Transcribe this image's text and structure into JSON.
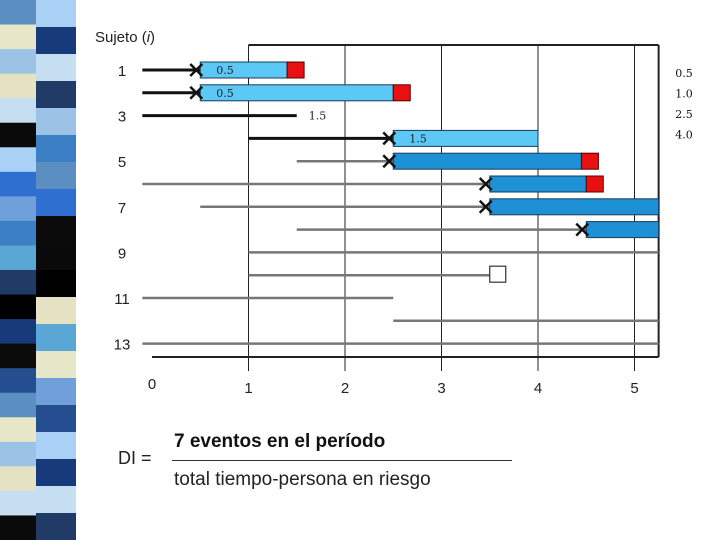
{
  "header": {
    "subject_label": "Sujeto (",
    "subject_var": "i",
    "subject_close": ")"
  },
  "stripe": {
    "colors": [
      "#5B8FC2",
      "#1F3B66",
      "#A9D1F5",
      "#E8E6C8",
      "#000000",
      "#2E6FD0",
      "#9CC3E6",
      "#173A7A",
      "#6FA0D9",
      "#E4E2C2",
      "#0B0B0B",
      "#3D7FC4",
      "#C6DEF2",
      "#244E8F",
      "#5AA7D6",
      "#0A0A0A"
    ],
    "row_counts": [
      22,
      20
    ]
  },
  "chart_data": {
    "type": "follow-up timeline",
    "x_axis": {
      "range": [
        0,
        5
      ],
      "ticks": [
        "0",
        "1",
        "2",
        "3",
        "4",
        "5"
      ],
      "gridlines": [
        1,
        2,
        3,
        4,
        5
      ]
    },
    "y_labels": [
      {
        "row": 1,
        "label": "1"
      },
      {
        "row": 3,
        "label": "3"
      },
      {
        "row": 5,
        "label": "5"
      },
      {
        "row": 7,
        "label": "7"
      },
      {
        "row": 9,
        "label": "9"
      },
      {
        "row": 11,
        "label": "11"
      },
      {
        "row": 13,
        "label": "13"
      }
    ],
    "subjects": [
      {
        "row": 1,
        "start": -0.1,
        "end": 0.5,
        "line": "#111111",
        "event": true
      },
      {
        "row": 2,
        "start": -0.1,
        "end": 0.5,
        "line": "#111111",
        "event": true
      },
      {
        "row": 3,
        "start": -0.1,
        "end": 1.5,
        "line": "#111111",
        "event": false
      },
      {
        "row": 4,
        "start": 1.0,
        "end": 2.5,
        "line": "#111111",
        "event": true
      },
      {
        "row": 5,
        "start": 1.5,
        "end": 2.5,
        "line": "#777777",
        "event": true
      },
      {
        "row": 6,
        "start": -0.1,
        "end": 3.5,
        "line": "#777777",
        "event": true
      },
      {
        "row": 7,
        "start": 0.5,
        "end": 3.5,
        "line": "#777777",
        "event": true
      },
      {
        "row": 8,
        "start": 1.5,
        "end": 4.5,
        "line": "#777777",
        "event": true
      },
      {
        "row": 9,
        "start": 1.0,
        "end": 5.25,
        "line": "#777777",
        "event": false
      },
      {
        "row": 10,
        "start": 1.0,
        "end": 3.5,
        "line": "#777777",
        "event": false,
        "censor": "open-box"
      },
      {
        "row": 11,
        "start": -0.1,
        "end": 2.5,
        "line": "#777777",
        "event": false
      },
      {
        "row": 12,
        "start": 2.5,
        "end": 5.25,
        "line": "#777777",
        "event": false
      },
      {
        "row": 13,
        "start": -0.1,
        "end": 5.25,
        "line": "#777777",
        "event": false
      }
    ],
    "risk_bars": [
      {
        "row": 1,
        "start": 0.5,
        "end": 1.4,
        "fill": "#5BC8F5",
        "red_box": true,
        "label": "0.5"
      },
      {
        "row": 2,
        "start": 0.5,
        "end": 2.5,
        "fill": "#5BC8F5",
        "red_box": true,
        "label": "0.5"
      },
      {
        "row": 4,
        "start": 2.5,
        "end": 4.0,
        "fill": "#5BC8F5",
        "red_box": false,
        "label": "1.5"
      },
      {
        "row": 5,
        "start": 2.5,
        "end": 4.45,
        "fill": "#1E90D6",
        "red_box": true,
        "label": ""
      },
      {
        "row": 6,
        "start": 3.5,
        "end": 4.5,
        "fill": "#1E90D6",
        "red_box": true,
        "label": ""
      },
      {
        "row": 7,
        "start": 3.5,
        "end": 5.25,
        "fill": "#1E90D6",
        "red_box": false,
        "label": ""
      },
      {
        "row": 8,
        "start": 4.5,
        "end": 5.25,
        "fill": "#1E90D6",
        "red_box": false,
        "label": ""
      }
    ],
    "row3_value_label": "1.5",
    "right_values": [
      "0.5",
      "1.0",
      "2.5",
      "4.0"
    ],
    "colors": {
      "event_red": "#E81010",
      "event_x": "#111111",
      "grid": "#222222"
    }
  },
  "formula": {
    "lhs": "DI =",
    "numerator": "7 eventos en el período",
    "denominator": "total tiempo-persona en riesgo"
  }
}
